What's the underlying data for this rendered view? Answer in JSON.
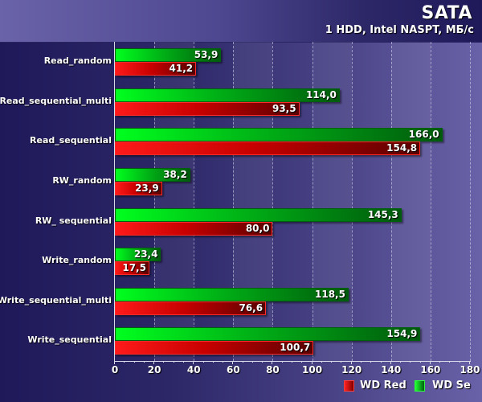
{
  "header": {
    "title": "SATA",
    "subtitle": "1 HDD, Intel NASPT, МБ/с"
  },
  "legend": [
    {
      "label": "WD Red",
      "color": "#e00000"
    },
    {
      "label": "WD Se",
      "color": "#00c018"
    }
  ],
  "chart_data": {
    "type": "bar",
    "orientation": "horizontal",
    "title": "SATA",
    "subtitle": "1 HDD, Intel NASPT, МБ/с",
    "xlabel": "",
    "ylabel": "",
    "xlim": [
      0,
      180
    ],
    "xticks": [
      "0",
      "20",
      "40",
      "60",
      "80",
      "100",
      "120",
      "140",
      "160",
      "180"
    ],
    "grid": true,
    "legend_position": "bottom-right",
    "categories": [
      "Read_random",
      "Read_sequential_multi",
      "Read_sequential",
      "RW_random",
      "RW_ sequential",
      "Write_random",
      "Write_sequential_multi",
      "Write_sequential"
    ],
    "series": [
      {
        "name": "WD Se",
        "color": "#00c018",
        "values": [
          53.9,
          114.0,
          166.0,
          38.2,
          145.3,
          23.4,
          118.5,
          154.9
        ],
        "labels": [
          "53,9",
          "114,0",
          "166,0",
          "38,2",
          "145,3",
          "23,4",
          "118,5",
          "154,9"
        ]
      },
      {
        "name": "WD Red",
        "color": "#e00000",
        "values": [
          41.2,
          93.5,
          154.8,
          23.9,
          80.0,
          17.5,
          76.6,
          100.7
        ],
        "labels": [
          "41,2",
          "93,5",
          "154,8",
          "23,9",
          "80,0",
          "17,5",
          "76,6",
          "100,7"
        ]
      }
    ]
  }
}
